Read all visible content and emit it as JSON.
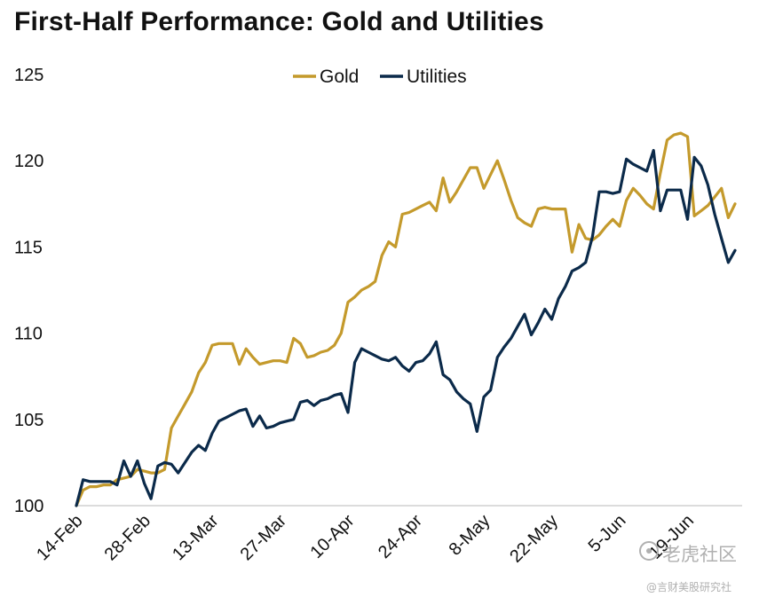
{
  "page": {
    "title": "First-Half Performance: Gold and Utilities"
  },
  "watermark": {
    "line1": "老虎社区",
    "line2": "@言财美股研究社"
  },
  "chart_data": {
    "type": "line",
    "title": "First-Half Performance: Gold and Utilities",
    "xlabel": "",
    "ylabel": "",
    "ylim": [
      100,
      125
    ],
    "yticks": [
      100,
      105,
      110,
      115,
      120,
      125
    ],
    "xticks": [
      "14-Feb",
      "28-Feb",
      "13-Mar",
      "27-Mar",
      "10-Apr",
      "24-Apr",
      "8-May",
      "22-May",
      "5-Jun",
      "19-Jun"
    ],
    "x_index_of_ticks": [
      0,
      10,
      20,
      30,
      40,
      50,
      60,
      70,
      80,
      90
    ],
    "x_count": 98,
    "legend": "top-center",
    "grid": false,
    "colors": {
      "Gold": "#C49A2C",
      "Utilities": "#0B2A4A"
    },
    "series": [
      {
        "name": "Gold",
        "values": [
          100.0,
          100.9,
          101.1,
          101.1,
          101.2,
          101.2,
          101.5,
          101.6,
          101.7,
          102.1,
          102.0,
          101.9,
          101.9,
          102.1,
          104.5,
          105.2,
          105.9,
          106.6,
          107.7,
          108.3,
          109.3,
          109.4,
          109.4,
          109.4,
          108.2,
          109.1,
          108.6,
          108.2,
          108.3,
          108.4,
          108.4,
          108.3,
          109.7,
          109.4,
          108.6,
          108.7,
          108.9,
          109.0,
          109.3,
          110.0,
          111.8,
          112.1,
          112.5,
          112.7,
          113.0,
          114.5,
          115.3,
          115.0,
          116.9,
          117.0,
          117.2,
          117.4,
          117.6,
          117.1,
          119.0,
          117.6,
          118.2,
          118.9,
          119.6,
          119.6,
          118.4,
          119.2,
          120.0,
          118.9,
          117.7,
          116.7,
          116.4,
          116.2,
          117.2,
          117.3,
          117.2,
          117.2,
          117.2,
          114.7,
          116.3,
          115.5,
          115.4,
          115.7,
          116.2,
          116.6,
          116.2,
          117.7,
          118.4,
          118.0,
          117.5,
          117.2,
          119.3,
          121.2,
          121.5,
          121.6,
          121.4,
          116.8,
          117.1,
          117.4,
          117.9,
          118.4,
          116.7,
          117.5
        ]
      },
      {
        "name": "Utilities",
        "values": [
          100.0,
          101.5,
          101.4,
          101.4,
          101.4,
          101.4,
          101.2,
          102.6,
          101.7,
          102.6,
          101.3,
          100.4,
          102.3,
          102.5,
          102.4,
          101.9,
          102.5,
          103.1,
          103.5,
          103.2,
          104.2,
          104.9,
          105.1,
          105.3,
          105.5,
          105.6,
          104.6,
          105.2,
          104.5,
          104.6,
          104.8,
          104.9,
          105.0,
          106.0,
          106.1,
          105.8,
          106.1,
          106.2,
          106.4,
          106.5,
          105.4,
          108.3,
          109.1,
          108.9,
          108.7,
          108.5,
          108.4,
          108.6,
          108.1,
          107.8,
          108.3,
          108.4,
          108.8,
          109.5,
          107.6,
          107.3,
          106.6,
          106.2,
          105.9,
          104.3,
          106.3,
          106.7,
          108.6,
          109.2,
          109.7,
          110.4,
          111.1,
          109.9,
          110.6,
          111.4,
          110.8,
          112.0,
          112.7,
          113.6,
          113.8,
          114.1,
          115.6,
          118.2,
          118.2,
          118.1,
          118.2,
          120.1,
          119.8,
          119.6,
          119.4,
          120.6,
          117.1,
          118.3,
          118.3,
          118.3,
          116.6,
          120.2,
          119.7,
          118.6,
          116.9,
          115.5,
          114.1,
          114.8
        ]
      }
    ]
  }
}
